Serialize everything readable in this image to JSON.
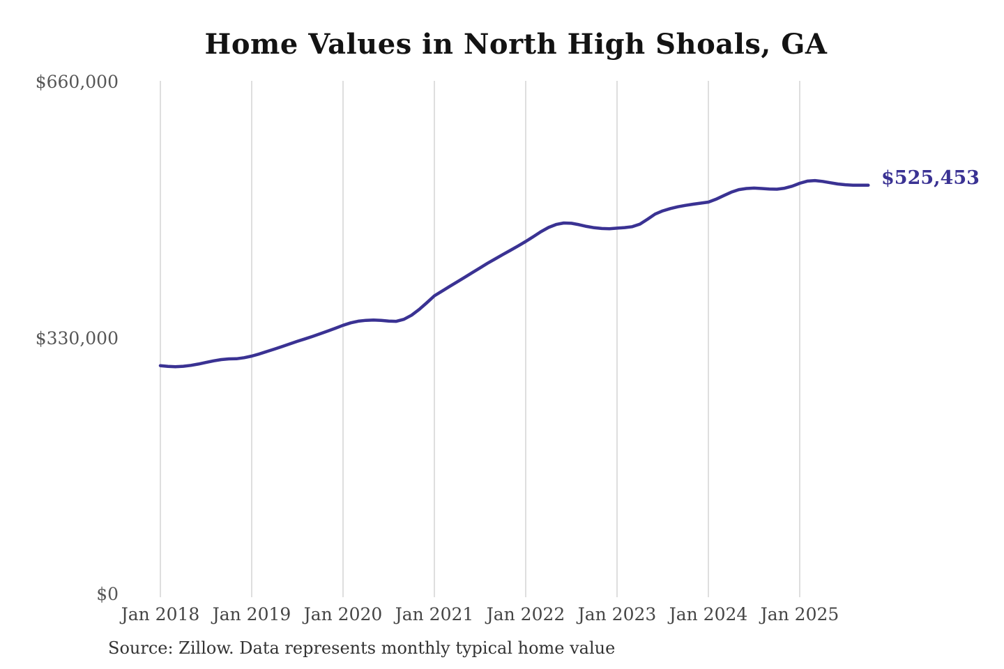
{
  "chart_data": {
    "type": "line",
    "title": "Home Values in North High Shoals, GA",
    "source_note": "Source: Zillow. Data represents monthly typical home value",
    "series_name": "Monthly typical home value",
    "end_label": "$525,453",
    "end_value": 525453,
    "ylim": [
      0,
      660000
    ],
    "y_ticks": [
      {
        "label": "$660,000",
        "value": 660000
      },
      {
        "label": "$330,000",
        "value": 330000
      },
      {
        "label": "$0",
        "value": 0
      }
    ],
    "x_tick_labels": [
      "Jan 2018",
      "Jan 2019",
      "Jan 2020",
      "Jan 2021",
      "Jan 2022",
      "Jan 2023",
      "Jan 2024",
      "Jan 2025"
    ],
    "grid": "vertical-only",
    "legend_position": "none",
    "line_color": "#3a3293",
    "grid_color": "#c9c9c9",
    "months": [
      "2018-01",
      "2018-02",
      "2018-03",
      "2018-04",
      "2018-05",
      "2018-06",
      "2018-07",
      "2018-08",
      "2018-09",
      "2018-10",
      "2018-11",
      "2018-12",
      "2019-01",
      "2019-02",
      "2019-03",
      "2019-04",
      "2019-05",
      "2019-06",
      "2019-07",
      "2019-08",
      "2019-09",
      "2019-10",
      "2019-11",
      "2019-12",
      "2020-01",
      "2020-02",
      "2020-03",
      "2020-04",
      "2020-05",
      "2020-06",
      "2020-07",
      "2020-08",
      "2020-09",
      "2020-10",
      "2020-11",
      "2020-12",
      "2021-01",
      "2021-02",
      "2021-03",
      "2021-04",
      "2021-05",
      "2021-06",
      "2021-07",
      "2021-08",
      "2021-09",
      "2021-10",
      "2021-11",
      "2021-12",
      "2022-01",
      "2022-02",
      "2022-03",
      "2022-04",
      "2022-05",
      "2022-06",
      "2022-07",
      "2022-08",
      "2022-09",
      "2022-10",
      "2022-11",
      "2022-12",
      "2023-01",
      "2023-02",
      "2023-03",
      "2023-04",
      "2023-05",
      "2023-06",
      "2023-07",
      "2023-08",
      "2023-09",
      "2023-10",
      "2023-11",
      "2023-12",
      "2024-01",
      "2024-02",
      "2024-03",
      "2024-04",
      "2024-05",
      "2024-06",
      "2024-07",
      "2024-08",
      "2024-09",
      "2024-10",
      "2024-11",
      "2024-12",
      "2025-01",
      "2025-02",
      "2025-03",
      "2025-04",
      "2025-05",
      "2025-06",
      "2025-07",
      "2025-08",
      "2025-09",
      "2025-10"
    ],
    "values": [
      293000,
      292100,
      291700,
      292200,
      293400,
      295100,
      297100,
      299200,
      300800,
      301700,
      301900,
      303200,
      305300,
      308100,
      311200,
      314400,
      317700,
      321000,
      324300,
      327500,
      330700,
      334100,
      337600,
      341200,
      345000,
      348100,
      350300,
      351400,
      351700,
      351300,
      350500,
      350100,
      352700,
      358000,
      365400,
      374000,
      383000,
      389000,
      395000,
      401000,
      407000,
      413000,
      419000,
      425000,
      430600,
      436200,
      441700,
      447300,
      453000,
      459200,
      465600,
      471100,
      474900,
      476800,
      476500,
      474700,
      472400,
      470700,
      469700,
      469400,
      470200,
      470900,
      472100,
      475400,
      481700,
      488300,
      492400,
      495400,
      497700,
      499500,
      501100,
      502400,
      503800,
      507400,
      512000,
      516500,
      519800,
      521300,
      521800,
      521300,
      520600,
      520400,
      521600,
      524200,
      528000,
      530800,
      531500,
      530400,
      528700,
      527100,
      526100,
      525600,
      525500,
      525453
    ]
  }
}
